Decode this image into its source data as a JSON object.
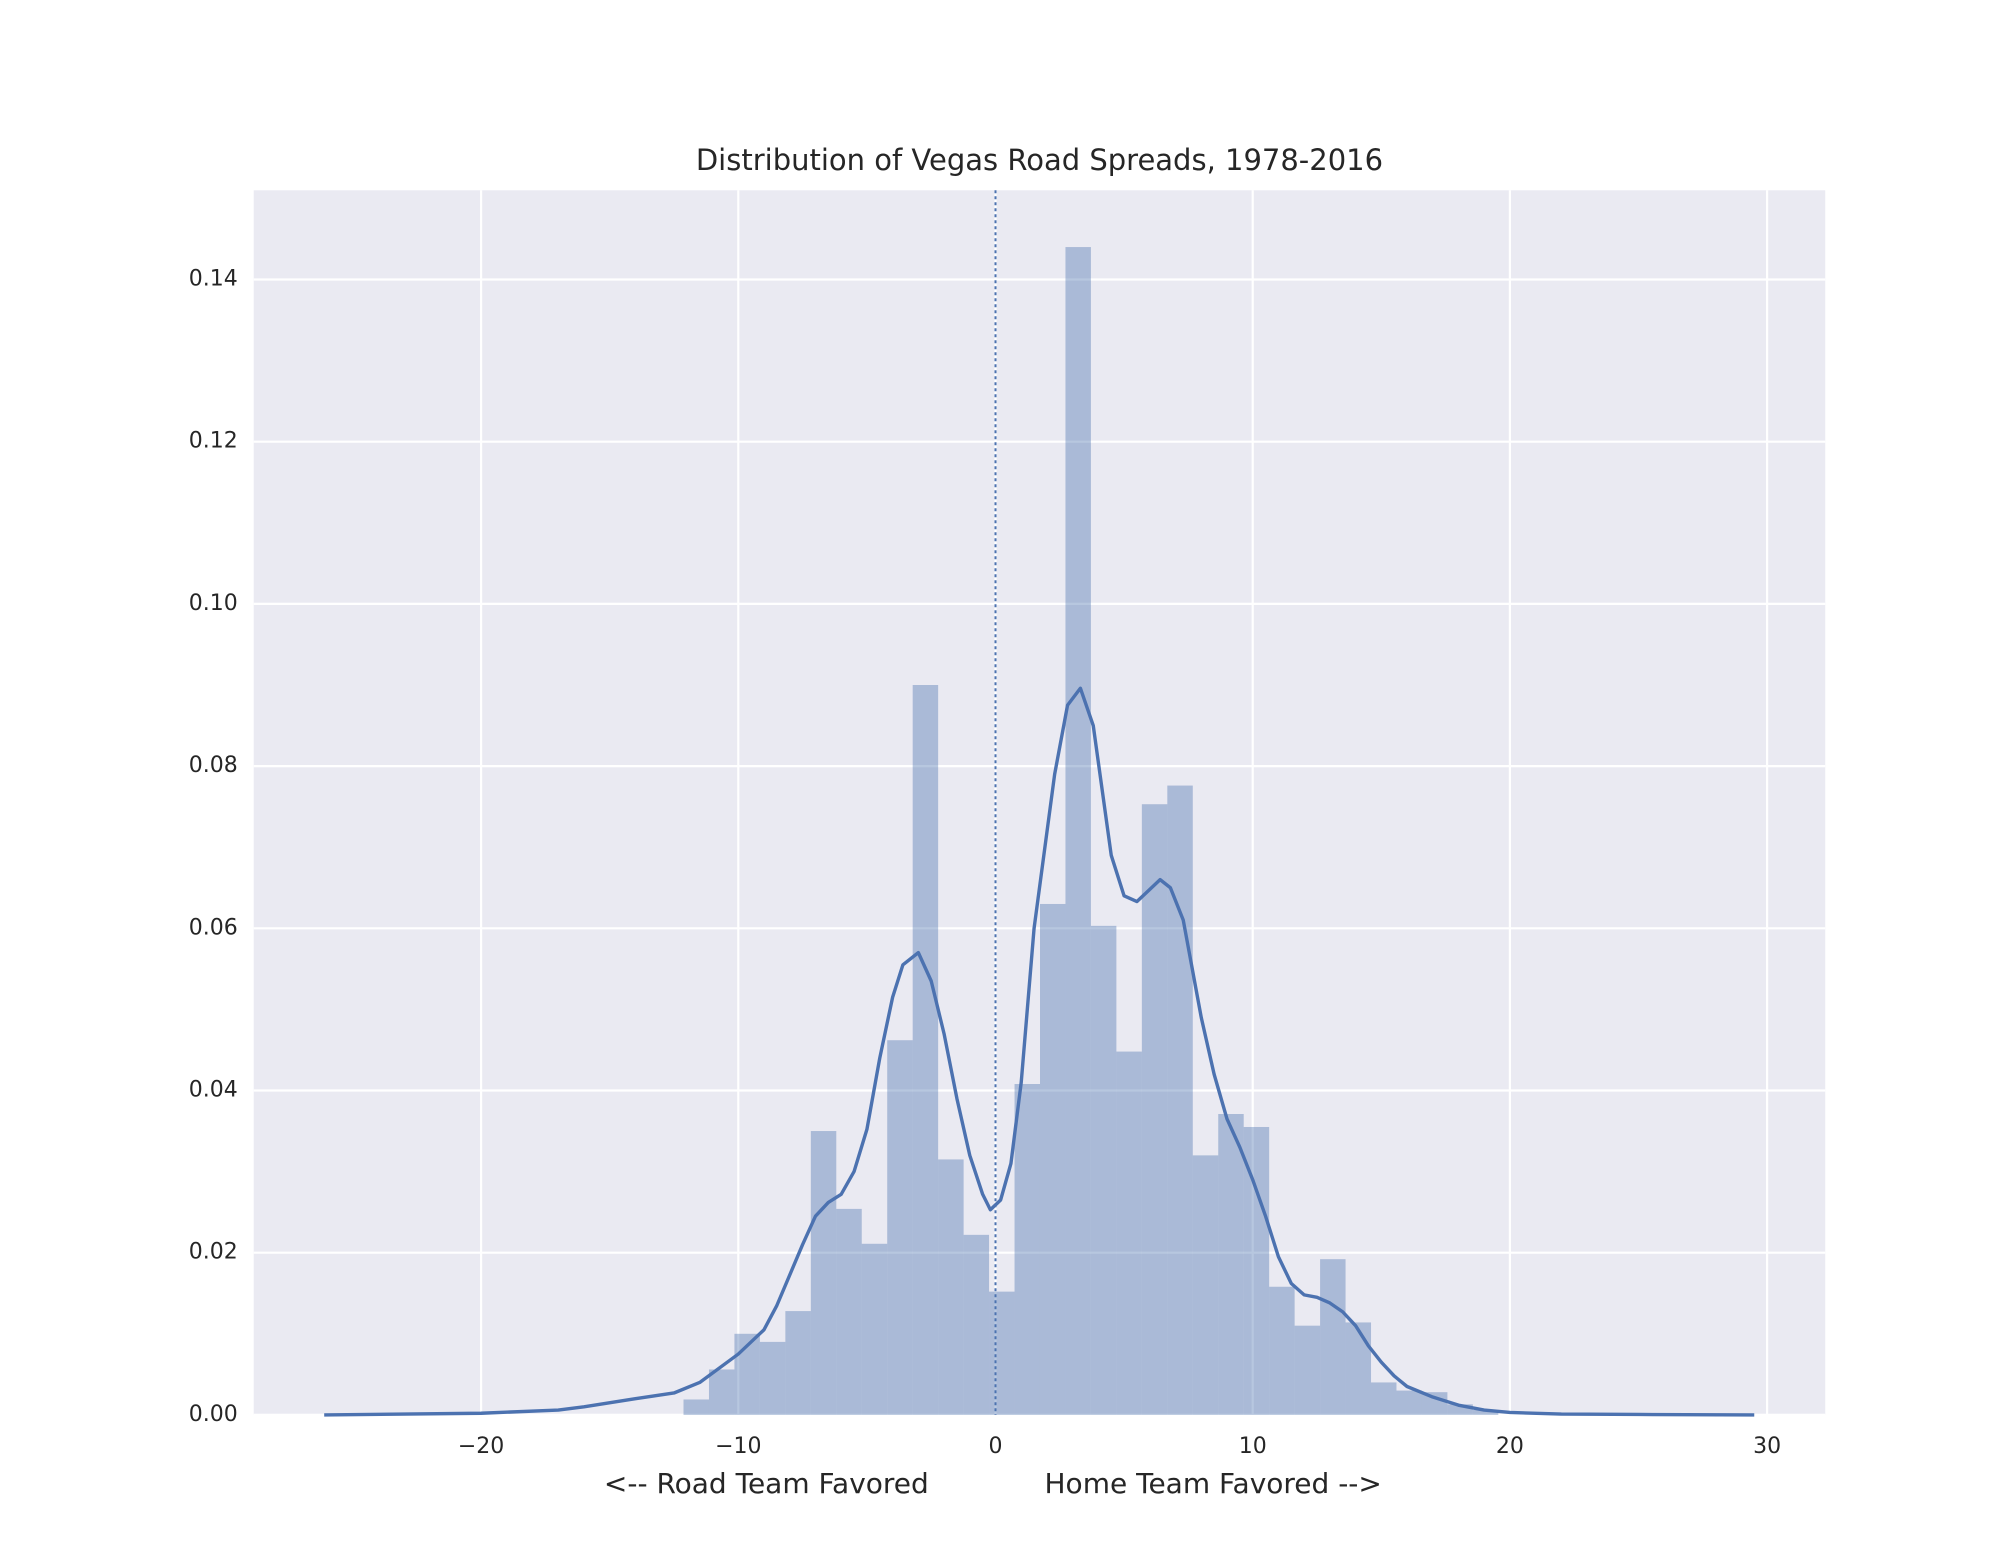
{
  "chart_data": {
    "type": "histogram",
    "title": "Distribution of Vegas Road Spreads, 1978-2016",
    "xlabel": "<-- Road Team Favored             Home Team Favored -->",
    "bins": [
      -12.13,
      -11.14,
      -10.15,
      -9.16,
      -8.17,
      -7.18,
      -6.19,
      -5.2,
      -4.21,
      -3.22,
      -2.23,
      -1.24,
      -0.25,
      0.74,
      1.73,
      2.72,
      3.71,
      4.7,
      5.69,
      6.68,
      7.67,
      8.66,
      9.65,
      10.64,
      11.63,
      12.62,
      13.61,
      14.6,
      15.59,
      16.58,
      17.57,
      18.56,
      19.55
    ],
    "values": [
      0.0019,
      0.0056,
      0.01,
      0.009,
      0.0128,
      0.035,
      0.0254,
      0.0211,
      0.0462,
      0.09,
      0.0315,
      0.0222,
      0.0152,
      0.0408,
      0.063,
      0.144,
      0.0603,
      0.0448,
      0.0753,
      0.0776,
      0.032,
      0.0371,
      0.0355,
      0.0158,
      0.011,
      0.0192,
      0.0114,
      0.004,
      0.003,
      0.0028,
      0.0013,
      0.0006
    ],
    "color": "#4c72b0",
    "kde": {
      "color": "#4c72b0",
      "x": [
        -26.1,
        -20,
        -17,
        -16,
        -14,
        -12.5,
        -11.5,
        -10,
        -9,
        -8.5,
        -7.5,
        -7,
        -6.5,
        -6,
        -5.5,
        -5,
        -4.5,
        -4,
        -3.6,
        -3,
        -2.5,
        -2,
        -1.5,
        -1,
        -0.5,
        -0.2,
        0.2,
        0.6,
        1,
        1.5,
        2.3,
        2.8,
        3.3,
        3.8,
        4.5,
        5,
        5.5,
        6,
        6.4,
        6.8,
        7.3,
        8,
        8.5,
        9,
        9.5,
        10,
        10.5,
        11,
        11.5,
        12,
        12.5,
        13,
        13.5,
        14,
        14.5,
        15,
        15.5,
        16,
        17,
        18,
        19,
        20,
        22,
        25,
        29.5
      ],
      "values": [
        0,
        0.0002,
        0.0006,
        0.001,
        0.002,
        0.0027,
        0.004,
        0.0075,
        0.0105,
        0.0135,
        0.021,
        0.0245,
        0.0262,
        0.0272,
        0.03,
        0.0352,
        0.044,
        0.0515,
        0.0555,
        0.057,
        0.0535,
        0.047,
        0.039,
        0.032,
        0.0272,
        0.0253,
        0.0265,
        0.031,
        0.041,
        0.06,
        0.079,
        0.0875,
        0.0896,
        0.085,
        0.069,
        0.064,
        0.0633,
        0.0648,
        0.066,
        0.065,
        0.061,
        0.049,
        0.042,
        0.0365,
        0.033,
        0.029,
        0.0245,
        0.0195,
        0.0162,
        0.0148,
        0.0145,
        0.0138,
        0.0127,
        0.011,
        0.0085,
        0.0065,
        0.0048,
        0.0035,
        0.0022,
        0.0012,
        0.0006,
        0.0003,
        0.0001,
        5e-05,
        0
      ]
    },
    "vlines": [
      0
    ],
    "xlim": [
      -28.84,
      32.26
    ],
    "ylim": [
      0,
      0.151
    ],
    "xticks": [
      {
        "value": -20,
        "label": "−20"
      },
      {
        "value": -10,
        "label": "−10"
      },
      0,
      10,
      20,
      30
    ],
    "yticks": [
      {
        "value": 0,
        "label": "0.00"
      },
      {
        "value": 0.02,
        "label": "0.02"
      },
      {
        "value": 0.04,
        "label": "0.04"
      },
      {
        "value": 0.06,
        "label": "0.06"
      },
      {
        "value": 0.08,
        "label": "0.08"
      },
      {
        "value": 0.1,
        "label": "0.10"
      },
      {
        "value": 0.12,
        "label": "0.12"
      },
      {
        "value": 0.14,
        "label": "0.14"
      }
    ],
    "grid": true
  }
}
